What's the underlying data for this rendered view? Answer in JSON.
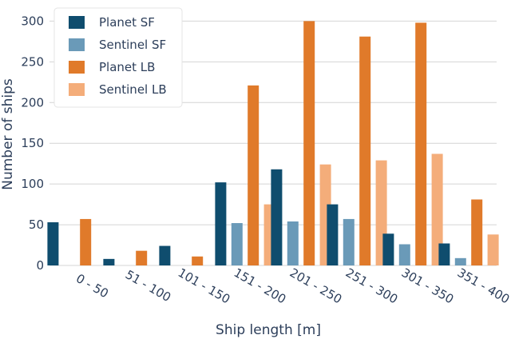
{
  "chart_data": {
    "type": "bar",
    "xlabel": "Ship length [m]",
    "ylabel": "Number of ships",
    "ylim": [
      0,
      320
    ],
    "y_ticks": [
      0,
      50,
      100,
      150,
      200,
      250,
      300
    ],
    "grid": "y-axis only",
    "legend_position": "top-left",
    "categories": [
      "0 - 50",
      "51 - 100",
      "101 - 150",
      "151 - 200",
      "201 - 250",
      "251 - 300",
      "301 - 350",
      "351 - 400"
    ],
    "series": [
      {
        "name": "Planet SF",
        "color": "#0f4d6e",
        "values": [
          53,
          8,
          24,
          102,
          118,
          75,
          39,
          27
        ]
      },
      {
        "name": "Sentinel SF",
        "color": "#6a9ab8",
        "values": [
          0,
          0,
          0,
          52,
          54,
          57,
          26,
          9
        ]
      },
      {
        "name": "Planet LB",
        "color": "#e07a2a",
        "values": [
          57,
          18,
          11,
          221,
          300,
          281,
          298,
          81
        ]
      },
      {
        "name": "Sentinel LB",
        "color": "#f4ad7a",
        "values": [
          0,
          0,
          0,
          75,
          124,
          129,
          137,
          38
        ]
      }
    ]
  }
}
